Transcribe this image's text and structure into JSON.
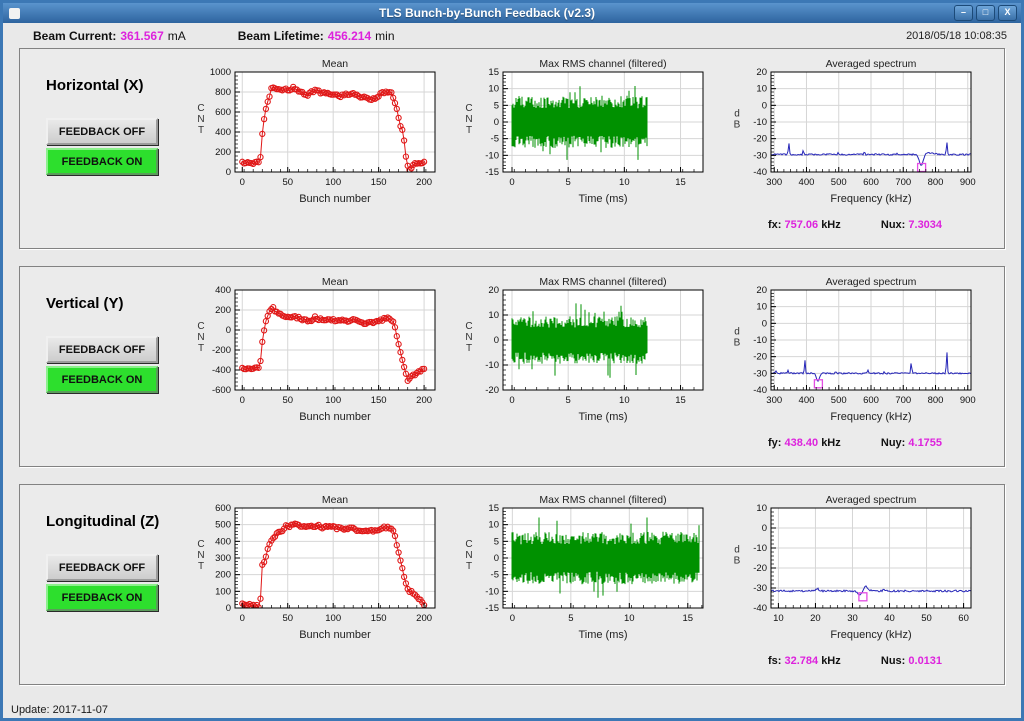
{
  "window": {
    "title": "TLS Bunch-by-Bunch Feedback  (v2.3)",
    "controls": {
      "minimize": "–",
      "maximize": "□",
      "close": "X"
    }
  },
  "header": {
    "beam_current_label": "Beam Current:",
    "beam_current_value": "361.567",
    "beam_current_unit": "mA",
    "beam_lifetime_label": "Beam Lifetime:",
    "beam_lifetime_value": "456.214",
    "beam_lifetime_unit": "min",
    "timestamp": "2018/05/18 10:08:35"
  },
  "footer": {
    "update_label": "Update: 2017-11-07"
  },
  "colors": {
    "accent_magenta": "#dd22dd",
    "plot_red": "#e01818",
    "plot_green": "#009100",
    "plot_blue": "#2626b8",
    "feedback_on_green": "#2ddf2d",
    "titlebar_blue": "#2e649f"
  },
  "sections": [
    {
      "label": "Horizontal (X)",
      "buttons": {
        "off": "FEEDBACK OFF",
        "on": "FEEDBACK ON"
      },
      "readouts": {
        "freq_label": "fx:",
        "freq_value": "757.06",
        "freq_unit": "kHz",
        "tune_label": "Nux:",
        "tune_value": "7.3034"
      }
    },
    {
      "label": "Vertical (Y)",
      "buttons": {
        "off": "FEEDBACK OFF",
        "on": "FEEDBACK ON"
      },
      "readouts": {
        "freq_label": "fy:",
        "freq_value": "438.40",
        "freq_unit": "kHz",
        "tune_label": "Nuy:",
        "tune_value": "4.1755"
      }
    },
    {
      "label": "Longitudinal (Z)",
      "buttons": {
        "off": "FEEDBACK OFF",
        "on": "FEEDBACK ON"
      },
      "readouts": {
        "freq_label": "fs:",
        "freq_value": "32.784",
        "freq_unit": "kHz",
        "tune_label": "Nus:",
        "tune_value": "0.0131"
      }
    }
  ],
  "chart_data": [
    {
      "type": "line",
      "slot": "mean-x",
      "title": "Mean",
      "xlabel": "Bunch number",
      "ylabel": "CNT",
      "xlim": [
        -8,
        212
      ],
      "ylim": [
        0,
        1000
      ],
      "xticks": [
        0,
        50,
        100,
        150,
        200
      ],
      "yticks": [
        0,
        200,
        400,
        600,
        800,
        1000
      ],
      "grid": true,
      "marker": "circle",
      "color": "#e01818",
      "points": [
        [
          0,
          90
        ],
        [
          14,
          92
        ],
        [
          18,
          90
        ],
        [
          20,
          150
        ],
        [
          22,
          370
        ],
        [
          24,
          520
        ],
        [
          26,
          620
        ],
        [
          28,
          700
        ],
        [
          30,
          760
        ],
        [
          32,
          840
        ],
        [
          34,
          850
        ],
        [
          36,
          830
        ],
        [
          38,
          820
        ],
        [
          40,
          825
        ],
        [
          44,
          810
        ],
        [
          48,
          835
        ],
        [
          52,
          820
        ],
        [
          56,
          845
        ],
        [
          60,
          830
        ],
        [
          64,
          800
        ],
        [
          68,
          780
        ],
        [
          72,
          775
        ],
        [
          76,
          800
        ],
        [
          80,
          820
        ],
        [
          84,
          805
        ],
        [
          88,
          790
        ],
        [
          92,
          785
        ],
        [
          96,
          780
        ],
        [
          100,
          780
        ],
        [
          104,
          770
        ],
        [
          108,
          760
        ],
        [
          112,
          770
        ],
        [
          116,
          780
        ],
        [
          120,
          790
        ],
        [
          124,
          775
        ],
        [
          128,
          760
        ],
        [
          132,
          750
        ],
        [
          136,
          735
        ],
        [
          140,
          730
        ],
        [
          144,
          735
        ],
        [
          148,
          745
        ],
        [
          152,
          780
        ],
        [
          156,
          795
        ],
        [
          160,
          800
        ],
        [
          164,
          785
        ],
        [
          166,
          750
        ],
        [
          168,
          680
        ],
        [
          170,
          620
        ],
        [
          172,
          540
        ],
        [
          174,
          470
        ],
        [
          176,
          420
        ],
        [
          178,
          310
        ],
        [
          180,
          150
        ],
        [
          182,
          60
        ],
        [
          184,
          10
        ],
        [
          186,
          30
        ],
        [
          188,
          60
        ],
        [
          190,
          80
        ],
        [
          194,
          90
        ],
        [
          198,
          95
        ],
        [
          200,
          90
        ]
      ]
    },
    {
      "type": "noise",
      "slot": "rms-x",
      "title": "Max RMS channel (filtered)",
      "xlabel": "Time (ms)",
      "ylabel": "CNT",
      "xlim": [
        -0.8,
        17
      ],
      "ylim": [
        -15,
        15
      ],
      "xticks": [
        0,
        5,
        10,
        15
      ],
      "yticks": [
        -15,
        -10,
        -5,
        0,
        5,
        10,
        15
      ],
      "grid": true,
      "color": "#009100",
      "signal_start": 0,
      "signal_end": 12,
      "amplitude": 7.5,
      "spike_amplitude": 12
    },
    {
      "type": "spectrum",
      "slot": "spectrum-x",
      "title": "Averaged spectrum",
      "xlabel": "Frequency (kHz)",
      "ylabel": "dB",
      "xlim": [
        290,
        910
      ],
      "ylim": [
        -40,
        20
      ],
      "xticks": [
        300,
        400,
        500,
        600,
        700,
        800,
        900
      ],
      "yticks": [
        -40,
        -30,
        -20,
        -10,
        0,
        10,
        20
      ],
      "grid": true,
      "color": "#2626b8",
      "baseline": -29.5,
      "peaks": [
        [
          345,
          -22,
          1.5
        ],
        [
          390,
          -27,
          1.5
        ],
        [
          497,
          -28.3,
          1.2
        ],
        [
          580,
          -27.2,
          1.2
        ],
        [
          680,
          -29,
          1.0
        ],
        [
          780,
          -28.5,
          14
        ],
        [
          835,
          -21.5,
          1.5
        ]
      ],
      "notch": {
        "x": 756,
        "depth": -36.5,
        "w": 6
      },
      "marker": [
        757,
        -37.3
      ],
      "marker_color": "#e34de3"
    },
    {
      "type": "line",
      "slot": "mean-y",
      "title": "Mean",
      "xlabel": "Bunch number",
      "ylabel": "CNT",
      "xlim": [
        -8,
        212
      ],
      "ylim": [
        -600,
        400
      ],
      "xticks": [
        0,
        50,
        100,
        150,
        200
      ],
      "yticks": [
        -600,
        -400,
        -200,
        0,
        200,
        400
      ],
      "grid": true,
      "marker": "circle",
      "color": "#e01818",
      "points": [
        [
          0,
          -390
        ],
        [
          6,
          -385
        ],
        [
          12,
          -385
        ],
        [
          18,
          -380
        ],
        [
          20,
          -300
        ],
        [
          22,
          -120
        ],
        [
          24,
          -10
        ],
        [
          26,
          90
        ],
        [
          28,
          140
        ],
        [
          30,
          185
        ],
        [
          32,
          220
        ],
        [
          34,
          230
        ],
        [
          36,
          195
        ],
        [
          38,
          170
        ],
        [
          40,
          160
        ],
        [
          44,
          145
        ],
        [
          48,
          130
        ],
        [
          52,
          140
        ],
        [
          56,
          135
        ],
        [
          60,
          125
        ],
        [
          64,
          115
        ],
        [
          68,
          105
        ],
        [
          72,
          95
        ],
        [
          76,
          100
        ],
        [
          80,
          130
        ],
        [
          84,
          110
        ],
        [
          88,
          100
        ],
        [
          92,
          105
        ],
        [
          96,
          95
        ],
        [
          100,
          100
        ],
        [
          104,
          95
        ],
        [
          108,
          100
        ],
        [
          112,
          95
        ],
        [
          116,
          90
        ],
        [
          120,
          95
        ],
        [
          124,
          100
        ],
        [
          128,
          80
        ],
        [
          132,
          70
        ],
        [
          136,
          65
        ],
        [
          140,
          70
        ],
        [
          144,
          80
        ],
        [
          148,
          85
        ],
        [
          152,
          95
        ],
        [
          156,
          110
        ],
        [
          160,
          115
        ],
        [
          164,
          100
        ],
        [
          166,
          75
        ],
        [
          168,
          20
        ],
        [
          170,
          -70
        ],
        [
          172,
          -150
        ],
        [
          174,
          -230
        ],
        [
          176,
          -300
        ],
        [
          178,
          -380
        ],
        [
          180,
          -450
        ],
        [
          182,
          -500
        ],
        [
          184,
          -490
        ],
        [
          186,
          -470
        ],
        [
          188,
          -455
        ],
        [
          192,
          -430
        ],
        [
          196,
          -410
        ],
        [
          200,
          -385
        ]
      ]
    },
    {
      "type": "noise",
      "slot": "rms-y",
      "title": "Max RMS channel (filtered)",
      "xlabel": "Time (ms)",
      "ylabel": "CNT",
      "xlim": [
        -0.8,
        17
      ],
      "ylim": [
        -20,
        20
      ],
      "xticks": [
        0,
        5,
        10,
        15
      ],
      "yticks": [
        -20,
        -10,
        0,
        10,
        20
      ],
      "grid": true,
      "color": "#009100",
      "signal_start": 0,
      "signal_end": 12,
      "amplitude": 9,
      "spike_amplitude": 15
    },
    {
      "type": "spectrum",
      "slot": "spectrum-y",
      "title": "Averaged spectrum",
      "xlabel": "Frequency (kHz)",
      "ylabel": "dB",
      "xlim": [
        290,
        910
      ],
      "ylim": [
        -40,
        20
      ],
      "xticks": [
        300,
        400,
        500,
        600,
        700,
        800,
        900
      ],
      "yticks": [
        -40,
        -30,
        -20,
        -10,
        0,
        10,
        20
      ],
      "grid": true,
      "color": "#2626b8",
      "baseline": -30,
      "peaks": [
        [
          305,
          -28,
          1.2
        ],
        [
          342,
          -27.8,
          1.5
        ],
        [
          395,
          -22,
          1.5
        ],
        [
          490,
          -28.2,
          1.2
        ],
        [
          590,
          -27.8,
          1.5
        ],
        [
          640,
          -29.2,
          1.0
        ],
        [
          725,
          -23,
          1.5
        ],
        [
          835,
          -16.5,
          1.5
        ]
      ],
      "notch": {
        "x": 436,
        "depth": -34.5,
        "w": 5
      },
      "marker": [
        437,
        -36.3
      ],
      "marker_color": "#e34de3"
    },
    {
      "type": "line",
      "slot": "mean-z",
      "title": "Mean",
      "xlabel": "Bunch number",
      "ylabel": "CNT",
      "xlim": [
        -8,
        212
      ],
      "ylim": [
        0,
        600
      ],
      "xticks": [
        0,
        50,
        100,
        150,
        200
      ],
      "yticks": [
        0,
        100,
        200,
        300,
        400,
        500,
        600
      ],
      "grid": true,
      "marker": "circle",
      "color": "#e01818",
      "points": [
        [
          0,
          25
        ],
        [
          4,
          20
        ],
        [
          8,
          18
        ],
        [
          12,
          15
        ],
        [
          16,
          12
        ],
        [
          18,
          10
        ],
        [
          20,
          60
        ],
        [
          21,
          210
        ],
        [
          22,
          255
        ],
        [
          24,
          275
        ],
        [
          26,
          315
        ],
        [
          28,
          360
        ],
        [
          30,
          385
        ],
        [
          32,
          400
        ],
        [
          34,
          415
        ],
        [
          36,
          430
        ],
        [
          40,
          455
        ],
        [
          44,
          465
        ],
        [
          48,
          490
        ],
        [
          52,
          485
        ],
        [
          56,
          505
        ],
        [
          60,
          505
        ],
        [
          64,
          490
        ],
        [
          68,
          485
        ],
        [
          72,
          490
        ],
        [
          76,
          495
        ],
        [
          80,
          480
        ],
        [
          84,
          500
        ],
        [
          88,
          480
        ],
        [
          92,
          488
        ],
        [
          96,
          490
        ],
        [
          100,
          485
        ],
        [
          104,
          478
        ],
        [
          108,
          482
        ],
        [
          112,
          476
        ],
        [
          116,
          478
        ],
        [
          120,
          480
        ],
        [
          124,
          470
        ],
        [
          128,
          468
        ],
        [
          132,
          462
        ],
        [
          136,
          465
        ],
        [
          140,
          470
        ],
        [
          144,
          462
        ],
        [
          148,
          466
        ],
        [
          152,
          478
        ],
        [
          156,
          484
        ],
        [
          160,
          486
        ],
        [
          164,
          476
        ],
        [
          166,
          470
        ],
        [
          168,
          432
        ],
        [
          170,
          382
        ],
        [
          172,
          330
        ],
        [
          174,
          282
        ],
        [
          176,
          232
        ],
        [
          178,
          190
        ],
        [
          180,
          152
        ],
        [
          182,
          112
        ],
        [
          184,
          100
        ],
        [
          186,
          96
        ],
        [
          188,
          86
        ],
        [
          190,
          76
        ],
        [
          193,
          62
        ],
        [
          196,
          46
        ],
        [
          200,
          22
        ]
      ]
    },
    {
      "type": "noise",
      "slot": "rms-z",
      "title": "Max RMS channel (filtered)",
      "xlabel": "Time (ms)",
      "ylabel": "CNT",
      "xlim": [
        -0.8,
        16.3
      ],
      "ylim": [
        -15,
        15
      ],
      "xticks": [
        0,
        5,
        10,
        15
      ],
      "yticks": [
        -15,
        -10,
        -5,
        0,
        5,
        10,
        15
      ],
      "grid": true,
      "color": "#009100",
      "signal_start": 0,
      "signal_end": 16,
      "amplitude": 7.5,
      "spike_amplitude": 12
    },
    {
      "type": "spectrum",
      "slot": "spectrum-z",
      "title": "Averaged spectrum",
      "xlabel": "Frequency (kHz)",
      "ylabel": "dB",
      "xlim": [
        8,
        62
      ],
      "ylim": [
        -40,
        10
      ],
      "xticks": [
        10,
        20,
        30,
        40,
        50,
        60
      ],
      "yticks": [
        -40,
        -30,
        -20,
        -10,
        0,
        10
      ],
      "grid": true,
      "color": "#2626b8",
      "baseline": -31.5,
      "peaks": [
        [
          20.5,
          -30.3,
          0.4
        ],
        [
          33.4,
          -28.4,
          0.7
        ],
        [
          38.5,
          -30.8,
          0.3
        ]
      ],
      "notch": {
        "x": 32.4,
        "depth": -33.8,
        "w": 0.8
      },
      "marker": [
        32.8,
        -34.4
      ],
      "marker_color": "#e34de3"
    }
  ]
}
